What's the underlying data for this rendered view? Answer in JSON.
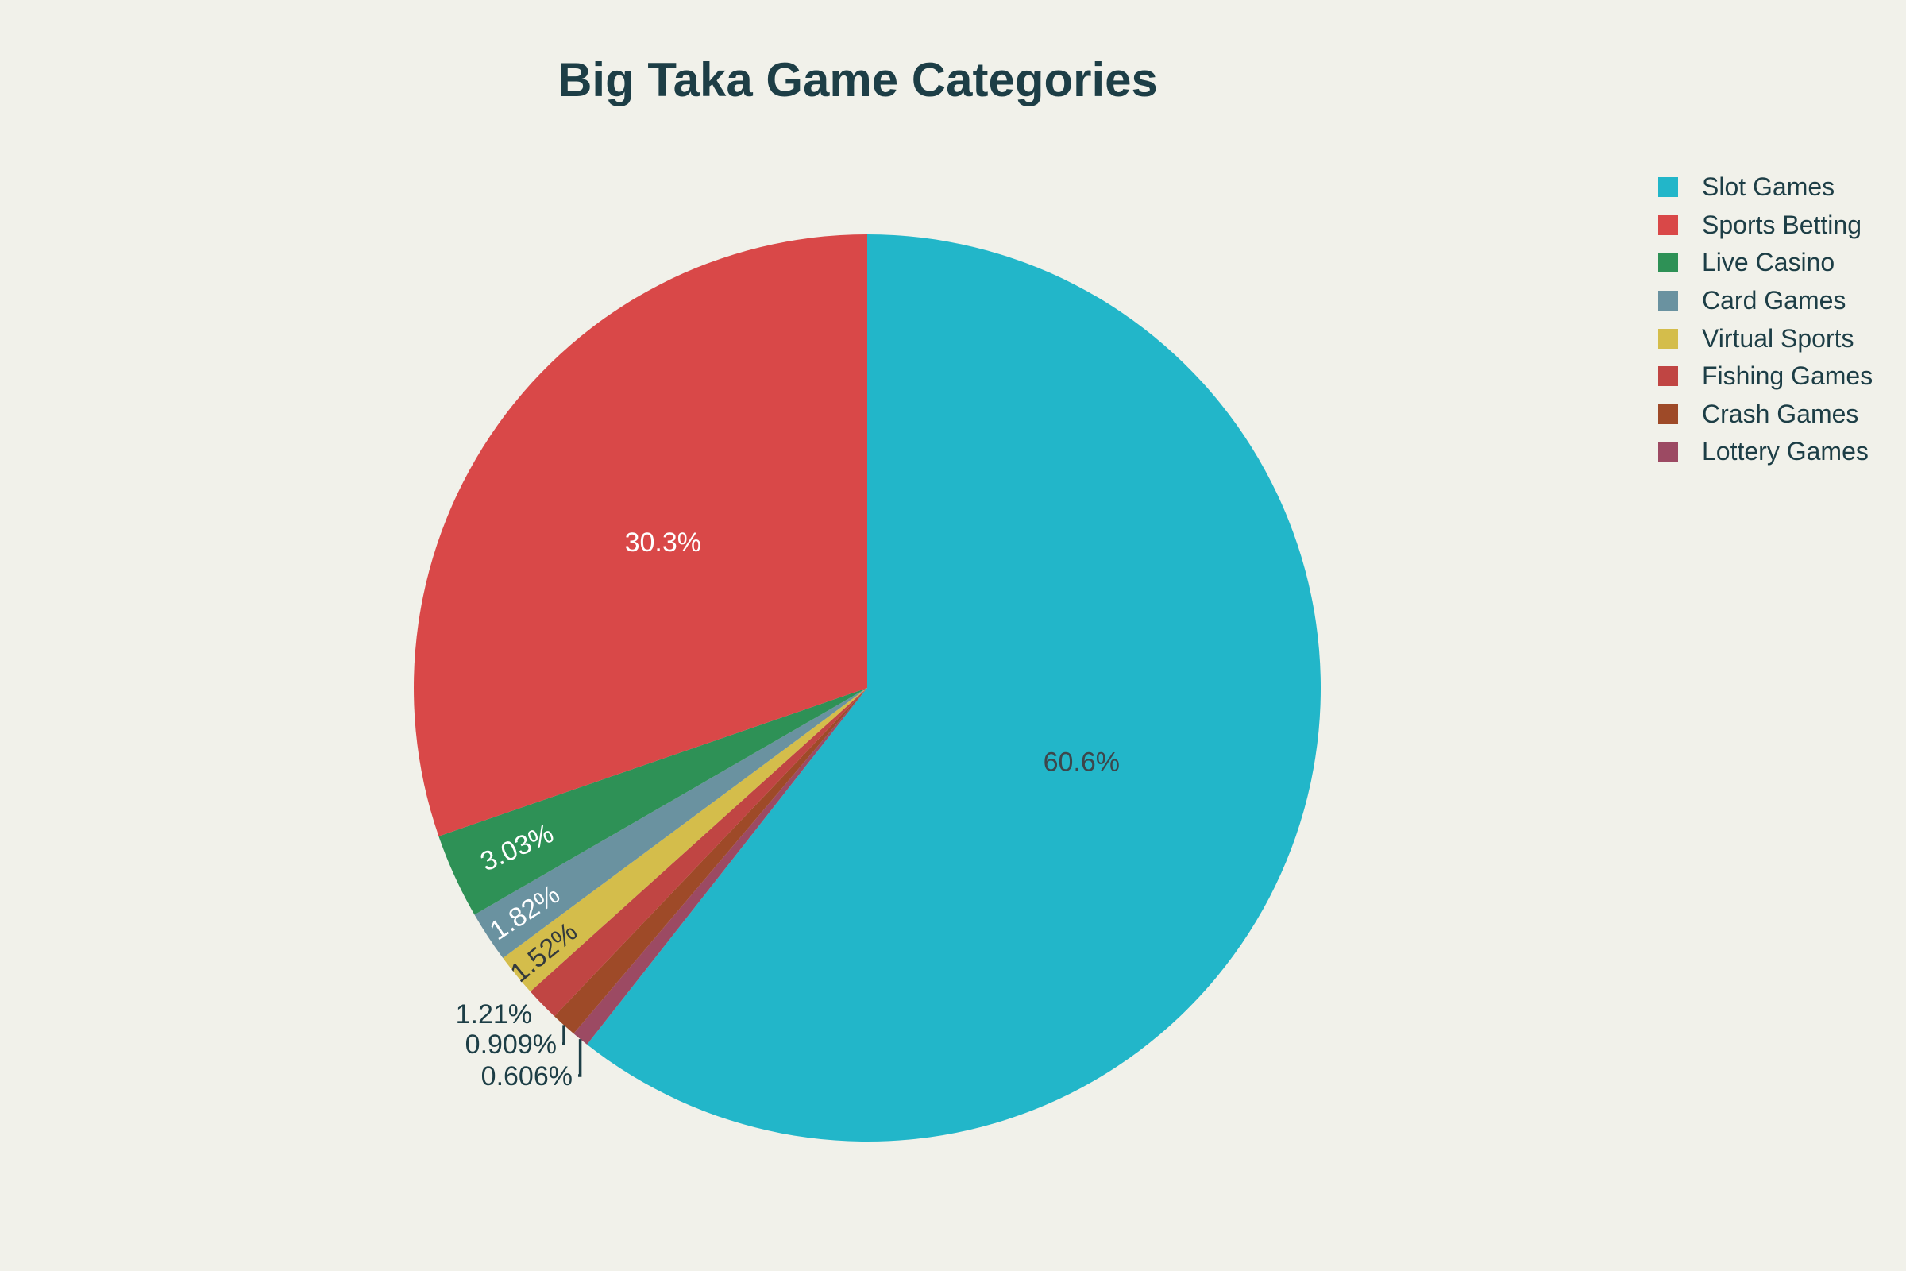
{
  "page": {
    "background": "#f1f1ea",
    "text_color": "#1d3e46"
  },
  "header": {
    "title": "Big Taka Game Categories"
  },
  "legend": {
    "position": "right",
    "items": [
      "Slot Games",
      "Sports Betting",
      "Live Casino",
      "Card Games",
      "Virtual Sports",
      "Fishing Games",
      "Crash Games",
      "Lottery Games"
    ]
  },
  "chart_data": {
    "type": "pie",
    "title": "Big Taka Game Categories",
    "categories": [
      "Slot Games",
      "Sports Betting",
      "Live Casino",
      "Card Games",
      "Virtual Sports",
      "Fishing Games",
      "Crash Games",
      "Lottery Games"
    ],
    "values": [
      60.6,
      30.3,
      3.03,
      1.82,
      1.52,
      1.21,
      0.909,
      0.606
    ],
    "labels": [
      "60.6%",
      "30.3%",
      "3.03%",
      "1.82%",
      "1.52%",
      "1.21%",
      "0.909%",
      "0.606%"
    ],
    "colors": [
      "#22b6c9",
      "#d94848",
      "#2e9156",
      "#6a92a0",
      "#d4bd4b",
      "#c04543",
      "#9e4a28",
      "#9c4a63"
    ],
    "legend_position": "right",
    "clockwise_order_from_top": [
      "Slot Games",
      "Lottery Games",
      "Crash Games",
      "Fishing Games",
      "Virtual Sports",
      "Card Games",
      "Live Casino",
      "Sports Betting"
    ],
    "grid": false,
    "background": "#f1f1ea",
    "text_color": "#1d3e46"
  }
}
